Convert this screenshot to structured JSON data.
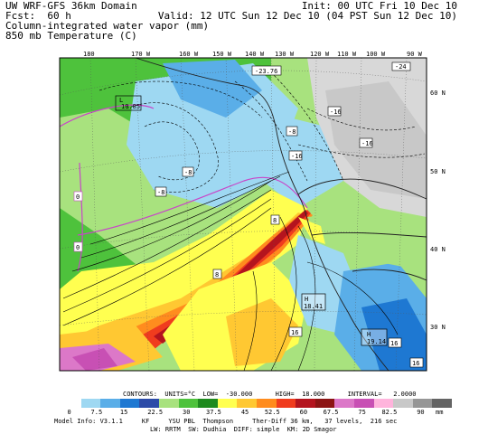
{
  "header": {
    "title": "UW WRF-GFS 36km Domain",
    "fcst": "Fcst:  60 h",
    "field1": "Column-integrated water vapor (mm)",
    "field2": "850 mb Temperature (C)",
    "init": "Init: 00 UTC Fri 10 Dec 10",
    "valid": "Valid: 12 UTC Sun 12 Dec 10 (04 PST Sun 12 Dec 10)"
  },
  "map": {
    "lon_labels": [
      "180",
      "170 W",
      "160 W",
      "150 W",
      "140 W",
      "130 W",
      "120 W",
      "110 W",
      "100 W",
      "90 W"
    ],
    "lat_labels": [
      "60 N",
      "50 N",
      "40 N",
      "30 N"
    ],
    "features": [
      {
        "kind": "L",
        "value": "10.85"
      },
      {
        "kind": "H",
        "value": "18.41"
      },
      {
        "kind": "H",
        "value": "19.14"
      },
      {
        "kind": "label",
        "value": "-23.76"
      }
    ],
    "contour_labels": [
      "-24",
      "-16",
      "-16",
      "-16",
      "-8",
      "-8",
      "-8",
      "0",
      "0",
      "8",
      "8",
      "16",
      "16",
      "16"
    ]
  },
  "colorbar": {
    "ticks": [
      "0",
      "7.5",
      "15",
      "22.5",
      "30",
      "37.5",
      "45",
      "52.5",
      "60",
      "67.5",
      "75",
      "82.5",
      "90"
    ],
    "units": "mm",
    "colors": [
      "#ffffff",
      "#9ed8f2",
      "#5aaee8",
      "#1e78d2",
      "#2c4ba8",
      "#a8e27e",
      "#4ec23c",
      "#1e8a1e",
      "#ffff50",
      "#ffc832",
      "#ff8c1e",
      "#f03c1e",
      "#b4141e",
      "#8c1414",
      "#dc78c8",
      "#c850b4",
      "#ffb4dc",
      "#c8c8c8",
      "#969696",
      "#646464"
    ]
  },
  "footer": {
    "contours": "CONTOURS:  UNITS=°C  LOW=  -30.000      HIGH=  18.000      INTERVAL=   2.0000",
    "model_info_1": "Model Info: V3.1.1     KF     YSU PBL  Thompson     Ther-Diff 36 km,   37 levels,  216 sec",
    "model_info_2": "LW: RRTM  SW: Dudhia  DIFF: simple  KM: 2D Smagor"
  }
}
